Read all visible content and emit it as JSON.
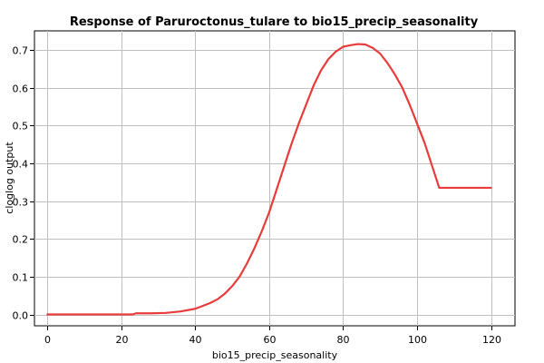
{
  "chart_data": {
    "type": "line",
    "title": "Response of Paruroctonus_tulare to bio15_precip_seasonality",
    "xlabel": "bio15_precip_seasonality",
    "ylabel": "cloglog output",
    "xlim": [
      -3.5,
      126.5
    ],
    "ylim": [
      -0.03,
      0.75
    ],
    "x_ticks": [
      0,
      20,
      40,
      60,
      80,
      100,
      120
    ],
    "y_ticks": [
      0.0,
      0.1,
      0.2,
      0.3,
      0.4,
      0.5,
      0.6,
      0.7
    ],
    "x_tick_labels": [
      "0",
      "20",
      "40",
      "60",
      "80",
      "100",
      "120"
    ],
    "y_tick_labels": [
      "0.0",
      "0.1",
      "0.2",
      "0.3",
      "0.4",
      "0.5",
      "0.6",
      "0.7"
    ],
    "grid": true,
    "series": [
      {
        "color": "#e83c3c",
        "x": [
          0,
          10,
          20,
          23,
          24,
          28,
          32,
          36,
          40,
          44,
          46,
          48,
          50,
          52,
          54,
          56,
          58,
          60,
          62,
          64,
          66,
          68,
          70,
          72,
          74,
          76,
          78,
          80,
          82,
          84,
          86,
          88,
          90,
          92,
          94,
          96,
          98,
          100,
          102,
          104,
          106,
          108,
          110,
          115,
          120
        ],
        "y": [
          0.0,
          0.0,
          0.0,
          0.0,
          0.003,
          0.003,
          0.004,
          0.008,
          0.015,
          0.03,
          0.04,
          0.055,
          0.075,
          0.1,
          0.135,
          0.175,
          0.22,
          0.27,
          0.33,
          0.39,
          0.45,
          0.505,
          0.555,
          0.605,
          0.645,
          0.675,
          0.695,
          0.708,
          0.712,
          0.715,
          0.714,
          0.705,
          0.69,
          0.665,
          0.635,
          0.6,
          0.555,
          0.505,
          0.455,
          0.395,
          0.335,
          0.335,
          0.335,
          0.335,
          0.335
        ]
      }
    ]
  }
}
